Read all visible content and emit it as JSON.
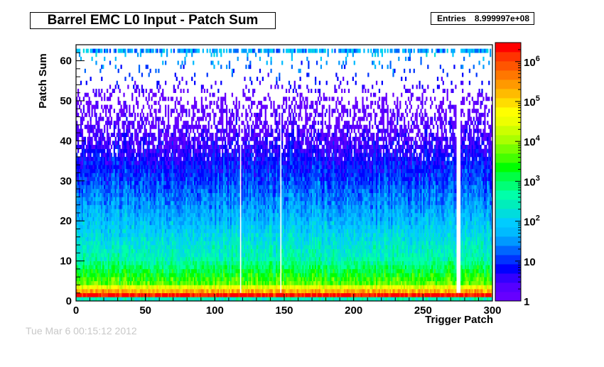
{
  "title": "Barrel EMC L0 Input - Patch Sum",
  "stats": {
    "label": "Entries",
    "value": "8.999997e+08"
  },
  "footer": "Tue Mar  6 00:15:12 2012",
  "chart_data": {
    "type": "heatmap",
    "title": "Barrel EMC L0 Input - Patch Sum",
    "xlabel": "Trigger Patch",
    "ylabel": "Patch Sum",
    "xlim": [
      0,
      300
    ],
    "ylim": [
      0,
      64
    ],
    "x_ticks": [
      0,
      50,
      100,
      150,
      200,
      250,
      300
    ],
    "y_ticks": [
      0,
      10,
      20,
      30,
      40,
      50,
      60
    ],
    "x_bins": 300,
    "y_bins": 64,
    "z_scale": "log",
    "zlim": [
      1,
      3000000
    ],
    "z_tick_labels": [
      "1",
      "10",
      "10^2",
      "10^3",
      "10^4",
      "10^5",
      "10^6"
    ],
    "entries": "8.999997e+08",
    "palette": [
      "#6600ff",
      "#5500ff",
      "#3300ff",
      "#0000ff",
      "#0033ff",
      "#0066ff",
      "#0099ff",
      "#00bbff",
      "#00ccff",
      "#00dddd",
      "#00eebb",
      "#00ffaa",
      "#00ff77",
      "#00ff44",
      "#00ff00",
      "#44ff00",
      "#77ff00",
      "#aaff00",
      "#ccff00",
      "#eeff00",
      "#ffff00",
      "#ffdd00",
      "#ffbb00",
      "#ff9900",
      "#ff7700",
      "#ff5500",
      "#ff3300",
      "#ff0000"
    ],
    "density_profile": {
      "description_of_structure": "counts per (trigger patch, patch sum) cell, log-scaled",
      "y_at_level": [
        {
          "patch_sum": 0,
          "typical_count": 300
        },
        {
          "patch_sum": 1,
          "typical_count": 2000000
        },
        {
          "patch_sum": 2,
          "typical_count": 200000
        },
        {
          "patch_sum": 4,
          "typical_count": 5000
        },
        {
          "patch_sum": 10,
          "typical_count": 400
        },
        {
          "patch_sum": 20,
          "typical_count": 60
        },
        {
          "patch_sum": 30,
          "typical_count": 12
        },
        {
          "patch_sum": 40,
          "typical_count": 3
        },
        {
          "patch_sum": 50,
          "typical_count": 1
        },
        {
          "patch_sum": 62,
          "typical_count": 80
        }
      ],
      "empty_columns": [
        118,
        147,
        274,
        275,
        276
      ]
    }
  }
}
